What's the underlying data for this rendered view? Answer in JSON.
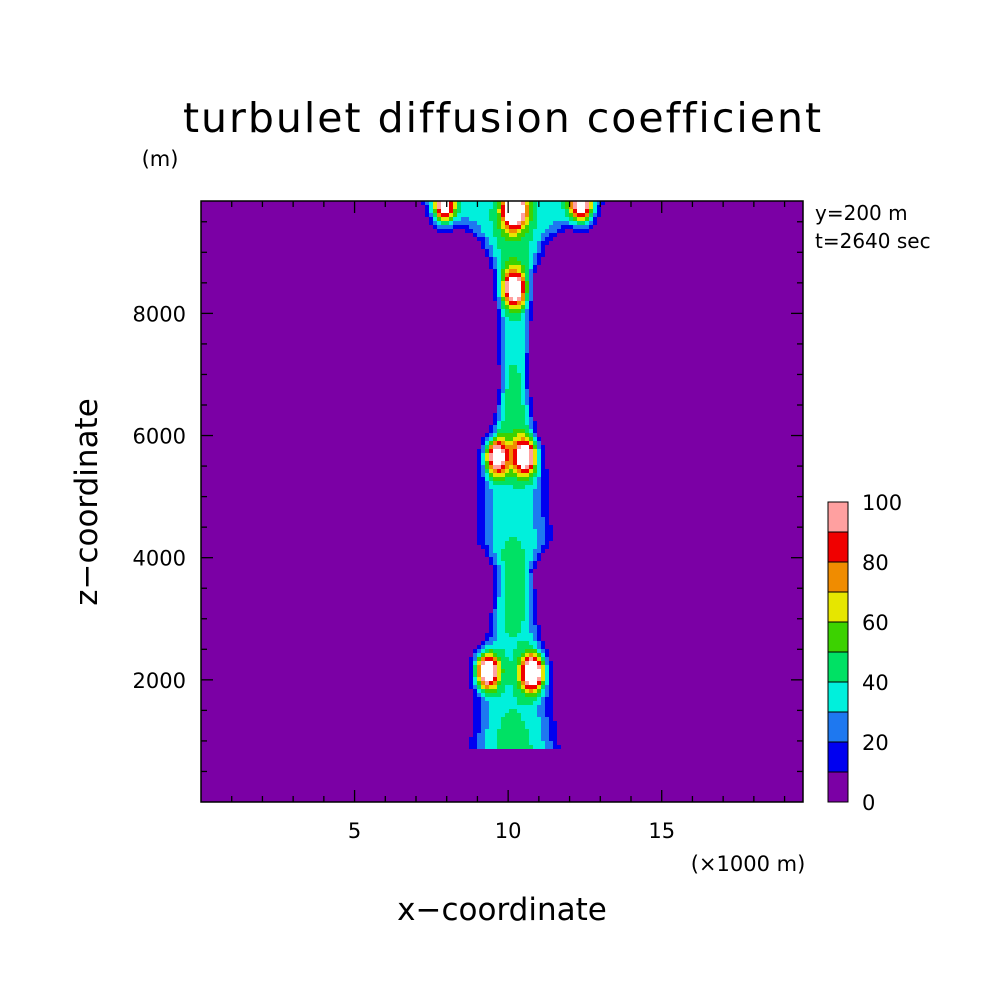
{
  "chart_data": {
    "type": "heatmap",
    "title": "turbulet diffusion coefficient",
    "xlabel": "x−coordinate",
    "ylabel": "z−coordinate",
    "x_unit": "(×1000 m)",
    "y_unit": "(m)",
    "annotations": [
      "y=200 m",
      "t=2640 sec"
    ],
    "xlim": [
      0,
      19.6
    ],
    "ylim": [
      0,
      9840
    ],
    "x_ticks": [
      5,
      10,
      15
    ],
    "x_tick_labels": [
      "5",
      "10",
      "15"
    ],
    "y_ticks": [
      2000,
      4000,
      6000,
      8000
    ],
    "y_tick_labels": [
      "2000",
      "4000",
      "6000",
      "8000"
    ],
    "colorbar": {
      "levels": [
        0,
        10,
        20,
        30,
        40,
        50,
        60,
        70,
        80,
        90,
        100
      ],
      "tick_values": [
        0,
        20,
        40,
        60,
        80,
        100
      ],
      "tick_labels": [
        "0",
        "20",
        "40",
        "60",
        "80",
        "100"
      ],
      "colors": [
        "#7b00a5",
        "#0000f0",
        "#1e78f0",
        "#00f0dc",
        "#00e164",
        "#3cd200",
        "#e6e600",
        "#f08c00",
        "#f00000",
        "#ffa0a0"
      ],
      "background": "#7b00a5",
      "above_max_color": "#ffffff"
    },
    "plume": {
      "centre_x": 10.2,
      "half_width_profile": [
        {
          "z": 950,
          "w": 1.5
        },
        {
          "z": 1300,
          "w": 1.4
        },
        {
          "z": 2000,
          "w": 1.25
        },
        {
          "z": 2600,
          "w": 0.95
        },
        {
          "z": 3200,
          "w": 0.75
        },
        {
          "z": 3800,
          "w": 0.65
        },
        {
          "z": 4300,
          "w": 1.3
        },
        {
          "z": 5200,
          "w": 1.25
        },
        {
          "z": 6000,
          "w": 0.75
        },
        {
          "z": 6800,
          "w": 0.5
        },
        {
          "z": 7600,
          "w": 0.55
        },
        {
          "z": 8600,
          "w": 0.65
        },
        {
          "z": 9200,
          "w": 1.2
        },
        {
          "z": 9840,
          "w": 3.0
        }
      ]
    },
    "peaks": [
      {
        "x": 9.3,
        "z": 2150,
        "value": 110
      },
      {
        "x": 10.8,
        "z": 2120,
        "value": 110
      },
      {
        "x": 9.6,
        "z": 5650,
        "value": 90
      },
      {
        "x": 10.55,
        "z": 5650,
        "value": 88
      },
      {
        "x": 10.2,
        "z": 8400,
        "value": 85
      },
      {
        "x": 10.2,
        "z": 9700,
        "value": 110
      },
      {
        "x": 7.9,
        "z": 9750,
        "value": 95
      },
      {
        "x": 12.4,
        "z": 9750,
        "value": 95
      }
    ]
  }
}
